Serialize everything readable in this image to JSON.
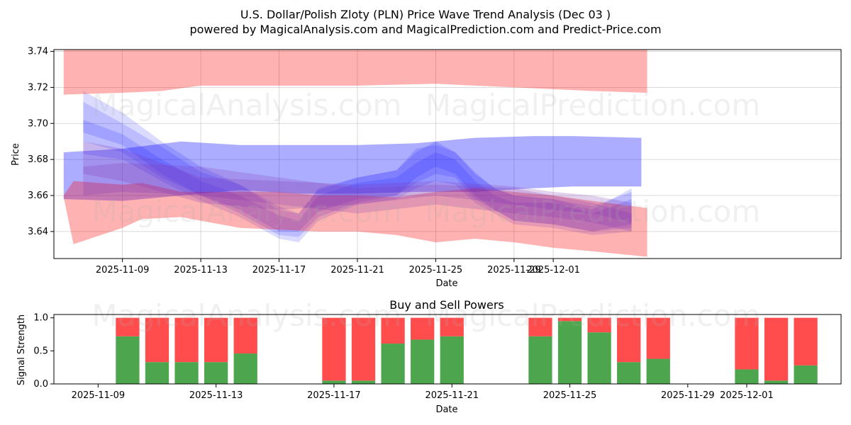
{
  "chart_data": [
    {
      "type": "area",
      "title_line1": "U.S. Dollar/Polish Zloty (PLN) Price Wave Trend Analysis (Dec 03 )",
      "title_line2": "powered by MagicalAnalysis.com and MagicalPrediction.com and Predict-Price.com",
      "xlabel": "Date",
      "ylabel": "Price",
      "xlim": [
        -3.5,
        36.7
      ],
      "ylim": [
        3.625,
        3.741
      ],
      "x_tick_labels": [
        "2025-11-09",
        "2025-11-13",
        "2025-11-17",
        "2025-11-21",
        "2025-11-25",
        "2025-11-29",
        "2025-12-01"
      ],
      "x_ticks_day_index": [
        0,
        4,
        8,
        12,
        16,
        20,
        22
      ],
      "y_ticks": [
        3.64,
        3.66,
        3.68,
        3.7,
        3.72,
        3.74
      ],
      "y_tick_labels": [
        "3.64",
        "3.66",
        "3.68",
        "3.70",
        "3.72",
        "3.74"
      ],
      "watermarks": [
        "MagicalAnalysis.com",
        "MagicalPrediction.com"
      ],
      "colors": {
        "red_band": "#ff0000",
        "blue_band": "#0000ff"
      },
      "red_bands": [
        {
          "x": [
            -3,
            0,
            2,
            4,
            8,
            12,
            16,
            20,
            24,
            26.8
          ],
          "lower": [
            3.716,
            3.717,
            3.718,
            3.721,
            3.721,
            3.721,
            3.722,
            3.72,
            3.718,
            3.717
          ],
          "upper": [
            3.741,
            3.741,
            3.741,
            3.741,
            3.741,
            3.741,
            3.741,
            3.741,
            3.741,
            3.741
          ]
        },
        {
          "x": [
            -3,
            -2.5,
            0,
            1,
            3,
            6,
            8,
            10,
            12,
            14,
            16,
            18,
            20,
            22,
            24,
            26.8
          ],
          "lower": [
            3.659,
            3.633,
            3.642,
            3.647,
            3.648,
            3.642,
            3.641,
            3.64,
            3.64,
            3.638,
            3.634,
            3.636,
            3.634,
            3.631,
            3.629,
            3.626
          ],
          "upper": [
            3.66,
            3.668,
            3.666,
            3.667,
            3.662,
            3.662,
            3.662,
            3.66,
            3.66,
            3.659,
            3.662,
            3.664,
            3.662,
            3.66,
            3.657,
            3.653
          ]
        }
      ],
      "blue_bands": [
        {
          "x": [
            -3,
            0,
            3,
            6,
            9,
            12,
            15,
            18,
            21,
            23,
            26.5
          ],
          "lower": [
            3.658,
            3.657,
            3.66,
            3.663,
            3.661,
            3.661,
            3.662,
            3.662,
            3.664,
            3.665,
            3.665
          ],
          "upper": [
            3.684,
            3.686,
            3.69,
            3.688,
            3.688,
            3.688,
            3.689,
            3.692,
            3.693,
            3.693,
            3.692
          ]
        },
        {
          "x": [
            -2,
            0,
            2,
            4,
            6,
            8,
            9,
            10,
            12,
            14,
            15,
            16,
            17,
            18,
            19,
            20,
            22,
            24,
            26
          ],
          "lower": [
            3.695,
            3.688,
            3.672,
            3.66,
            3.652,
            3.64,
            3.64,
            3.651,
            3.658,
            3.66,
            3.67,
            3.676,
            3.672,
            3.66,
            3.652,
            3.646,
            3.644,
            3.64,
            3.644
          ],
          "upper": [
            3.712,
            3.7,
            3.687,
            3.673,
            3.666,
            3.654,
            3.65,
            3.663,
            3.67,
            3.674,
            3.684,
            3.69,
            3.684,
            3.673,
            3.664,
            3.66,
            3.658,
            3.652,
            3.664
          ]
        },
        {
          "x": [
            -2,
            0,
            2,
            4,
            6,
            8,
            9,
            10,
            12,
            14,
            15,
            16,
            17,
            18,
            19,
            20,
            22,
            24,
            26
          ],
          "lower": [
            3.683,
            3.68,
            3.668,
            3.657,
            3.648,
            3.636,
            3.634,
            3.646,
            3.655,
            3.658,
            3.664,
            3.668,
            3.666,
            3.656,
            3.65,
            3.644,
            3.642,
            3.638,
            3.64
          ],
          "upper": [
            3.702,
            3.694,
            3.68,
            3.668,
            3.66,
            3.649,
            3.646,
            3.66,
            3.667,
            3.67,
            3.678,
            3.684,
            3.68,
            3.668,
            3.66,
            3.656,
            3.656,
            3.65,
            3.658
          ]
        },
        {
          "x": [
            -2,
            0,
            2,
            4,
            6,
            8,
            9,
            10,
            12,
            14,
            15,
            16,
            17,
            18,
            19,
            20,
            22,
            24,
            26
          ],
          "lower": [
            3.69,
            3.684,
            3.67,
            3.66,
            3.65,
            3.638,
            3.637,
            3.648,
            3.656,
            3.66,
            3.667,
            3.672,
            3.67,
            3.658,
            3.652,
            3.646,
            3.644,
            3.64,
            3.642
          ],
          "upper": [
            3.718,
            3.706,
            3.69,
            3.676,
            3.666,
            3.652,
            3.65,
            3.664,
            3.67,
            3.674,
            3.686,
            3.688,
            3.684,
            3.672,
            3.664,
            3.66,
            3.658,
            3.654,
            3.662
          ]
        }
      ],
      "purple_bands": [
        {
          "x": [
            -2,
            0,
            4,
            8,
            12,
            16,
            20,
            22,
            24,
            26
          ],
          "lower": [
            3.672,
            3.668,
            3.656,
            3.652,
            3.655,
            3.66,
            3.655,
            3.652,
            3.65,
            3.645
          ],
          "upper": [
            3.69,
            3.686,
            3.67,
            3.668,
            3.666,
            3.668,
            3.665,
            3.662,
            3.66,
            3.656
          ]
        },
        {
          "x": [
            -2,
            0,
            4,
            8,
            12,
            16,
            20,
            22,
            24,
            26
          ],
          "lower": [
            3.66,
            3.662,
            3.66,
            3.655,
            3.65,
            3.655,
            3.65,
            3.648,
            3.645,
            3.64
          ],
          "upper": [
            3.676,
            3.678,
            3.676,
            3.67,
            3.664,
            3.666,
            3.664,
            3.66,
            3.656,
            3.65
          ]
        }
      ]
    },
    {
      "type": "bar",
      "title": "Buy and Sell Powers",
      "xlabel": "Date",
      "ylabel": "Signal Strength",
      "xlim": [
        -1.5,
        25.2
      ],
      "ylim": [
        0,
        1.05
      ],
      "x_tick_labels": [
        "2025-11-09",
        "2025-11-13",
        "2025-11-17",
        "2025-11-21",
        "2025-11-25",
        "2025-11-29",
        "2025-12-01"
      ],
      "x_ticks_day_index": [
        0,
        4,
        8,
        12,
        16,
        20,
        22
      ],
      "y_ticks": [
        0,
        0.5,
        1.0
      ],
      "y_tick_labels": [
        "0.0",
        "0.5",
        "1.0"
      ],
      "colors": {
        "buy": "#4da64d",
        "sell": "#ff4d4d"
      },
      "series": [
        {
          "name": "Buy",
          "x": [
            1,
            2,
            3,
            4,
            5,
            8,
            9,
            10,
            11,
            12,
            15,
            16,
            17,
            18,
            19,
            22,
            23,
            24
          ],
          "values": [
            0.72,
            0.33,
            0.33,
            0.33,
            0.46,
            0.05,
            0.05,
            0.61,
            0.67,
            0.72,
            0.72,
            0.95,
            0.78,
            0.33,
            0.38,
            0.22,
            0.05,
            0.28
          ]
        },
        {
          "name": "Sell",
          "x": [
            1,
            2,
            3,
            4,
            5,
            8,
            9,
            10,
            11,
            12,
            15,
            16,
            17,
            18,
            19,
            22,
            23,
            24
          ],
          "values": [
            0.28,
            0.67,
            0.67,
            0.67,
            0.54,
            0.95,
            0.95,
            0.39,
            0.33,
            0.28,
            0.28,
            0.05,
            0.22,
            0.67,
            0.62,
            0.78,
            0.95,
            0.72
          ]
        }
      ]
    }
  ]
}
